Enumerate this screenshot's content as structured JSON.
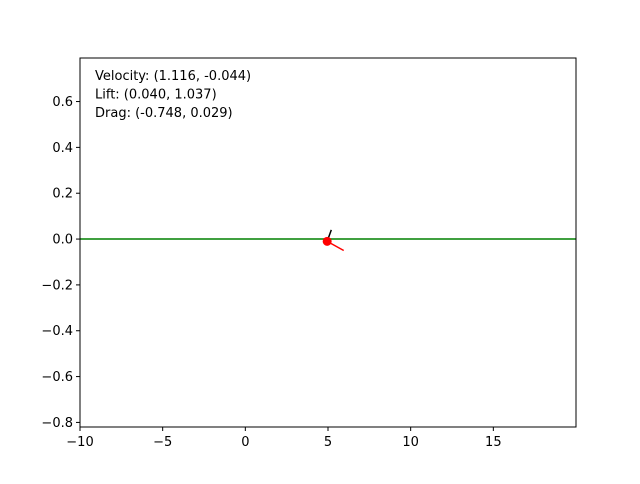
{
  "chart_data": {
    "type": "scatter",
    "title": "",
    "xlabel": "",
    "ylabel": "",
    "xlim": [
      -10,
      20
    ],
    "ylim": [
      -0.82,
      0.79
    ],
    "grid": false,
    "x_ticks": [
      -10,
      -5,
      0,
      5,
      10,
      15
    ],
    "y_ticks": [
      -0.8,
      -0.6,
      -0.4,
      -0.2,
      0.0,
      0.2,
      0.4,
      0.6
    ],
    "x_tick_labels": [
      "−10",
      "−5",
      "0",
      "5",
      "10",
      "15"
    ],
    "y_tick_labels": [
      "−0.8",
      "−0.6",
      "−0.4",
      "−0.2",
      "0.0",
      "0.2",
      "0.4",
      "0.6"
    ],
    "ground_line": {
      "y": 0.0,
      "color": "#008000"
    },
    "point": {
      "x": 4.95,
      "y": -0.01,
      "color": "#ff0000"
    },
    "vectors": [
      {
        "dx": 1.0,
        "dy": -0.04,
        "color": "#ff0000"
      },
      {
        "dx": 0.25,
        "dy": 0.05,
        "color": "#000000"
      }
    ],
    "annotations": [
      "Velocity: (1.116, -0.044)",
      "Lift: (0.040, 1.037)",
      "Drag: (-0.748, 0.029)"
    ]
  }
}
